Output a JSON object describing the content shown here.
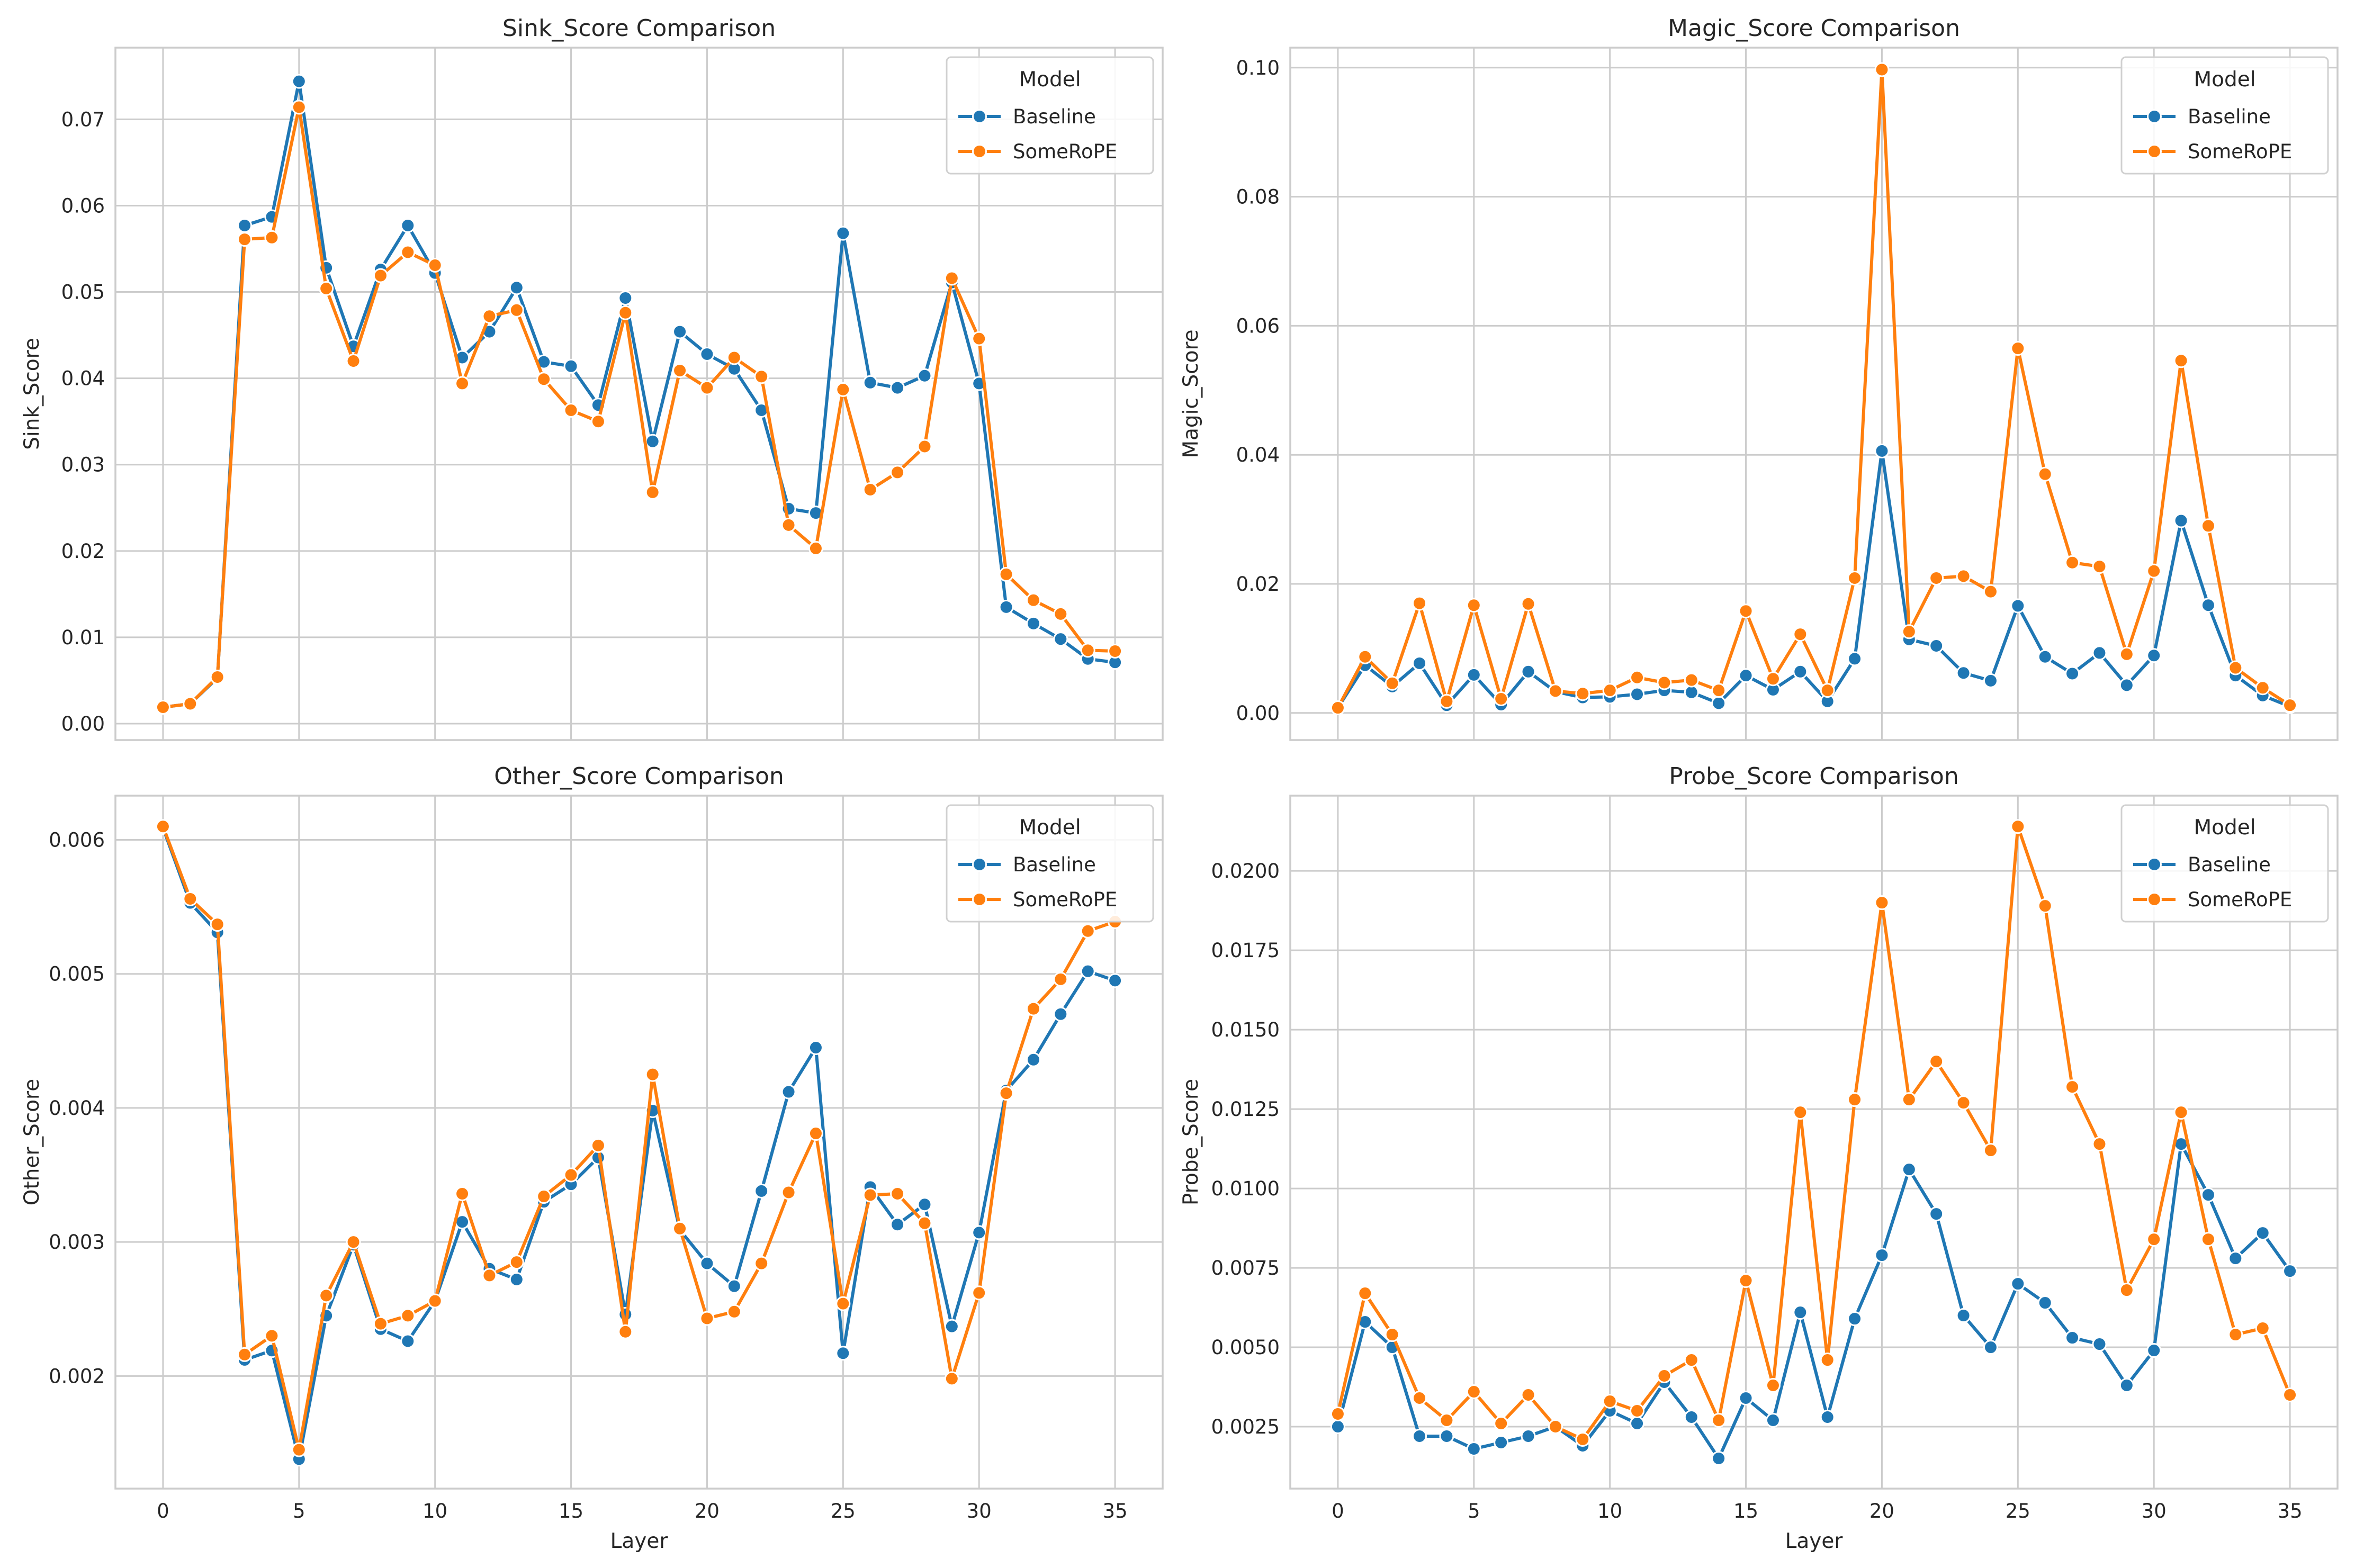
{
  "colors": {
    "baseline": "#1f77b4",
    "somerope": "#ff7f0e",
    "grid": "#cccccc",
    "text": "#262626"
  },
  "chart_data": [
    {
      "type": "line",
      "title": "Sink_Score Comparison",
      "xlabel": "",
      "ylabel": "Sink_Score",
      "xlim": [
        -1.75,
        36.75
      ],
      "ylim": [
        -0.0019,
        0.0783
      ],
      "xticks": [
        0,
        5,
        10,
        15,
        20,
        25,
        30,
        35
      ],
      "yticks": [
        0.0,
        0.01,
        0.02,
        0.03,
        0.04,
        0.05,
        0.06,
        0.07
      ],
      "ytick_labels": [
        "0.00",
        "0.01",
        "0.02",
        "0.03",
        "0.04",
        "0.05",
        "0.06",
        "0.07"
      ],
      "show_xtick_labels": false,
      "grid": true,
      "legend": {
        "title": "Model",
        "placement": "top-right"
      },
      "x": [
        0,
        1,
        2,
        3,
        4,
        5,
        6,
        7,
        8,
        9,
        10,
        11,
        12,
        13,
        14,
        15,
        16,
        17,
        18,
        19,
        20,
        21,
        22,
        23,
        24,
        25,
        26,
        27,
        28,
        29,
        30,
        31,
        32,
        33,
        34,
        35
      ],
      "series": [
        {
          "name": "Baseline",
          "values": [
            0.0019,
            0.0023,
            0.0053,
            0.0577,
            0.0587,
            0.0744,
            0.0528,
            0.0437,
            0.0526,
            0.0577,
            0.0522,
            0.0424,
            0.0454,
            0.0505,
            0.0419,
            0.0414,
            0.0369,
            0.0493,
            0.0327,
            0.0454,
            0.0428,
            0.0411,
            0.0363,
            0.0249,
            0.0244,
            0.0568,
            0.0395,
            0.0389,
            0.0403,
            0.0511,
            0.0394,
            0.0135,
            0.0116,
            0.0098,
            0.0075,
            0.0071
          ]
        },
        {
          "name": "SomeRoPE",
          "values": [
            0.0019,
            0.0023,
            0.0054,
            0.0561,
            0.0563,
            0.0714,
            0.0504,
            0.042,
            0.0519,
            0.0546,
            0.0531,
            0.0394,
            0.0472,
            0.0479,
            0.0399,
            0.0363,
            0.035,
            0.0476,
            0.0268,
            0.0409,
            0.0389,
            0.0424,
            0.0402,
            0.023,
            0.0203,
            0.0387,
            0.0271,
            0.0291,
            0.0321,
            0.0516,
            0.0446,
            0.0173,
            0.0143,
            0.0127,
            0.0085,
            0.0084
          ]
        }
      ]
    },
    {
      "type": "line",
      "title": "Magic_Score Comparison",
      "xlabel": "",
      "ylabel": "Magic_Score",
      "xlim": [
        -1.75,
        36.75
      ],
      "ylim": [
        -0.0042,
        0.1031
      ],
      "xticks": [
        0,
        5,
        10,
        15,
        20,
        25,
        30,
        35
      ],
      "yticks": [
        0.0,
        0.02,
        0.04,
        0.06,
        0.08,
        0.1
      ],
      "ytick_labels": [
        "0.00",
        "0.02",
        "0.04",
        "0.06",
        "0.08",
        "0.10"
      ],
      "show_xtick_labels": false,
      "grid": true,
      "legend": {
        "title": "Model",
        "placement": "top-right"
      },
      "x": [
        0,
        1,
        2,
        3,
        4,
        5,
        6,
        7,
        8,
        9,
        10,
        11,
        12,
        13,
        14,
        15,
        16,
        17,
        18,
        19,
        20,
        21,
        22,
        23,
        24,
        25,
        26,
        27,
        28,
        29,
        30,
        31,
        32,
        33,
        34,
        35
      ],
      "series": [
        {
          "name": "Baseline",
          "values": [
            0.0008,
            0.0074,
            0.0041,
            0.0077,
            0.0012,
            0.0059,
            0.0013,
            0.0064,
            0.0033,
            0.0024,
            0.0025,
            0.0029,
            0.0035,
            0.0032,
            0.0015,
            0.0058,
            0.0036,
            0.0064,
            0.0018,
            0.0084,
            0.0406,
            0.0114,
            0.0104,
            0.0062,
            0.005,
            0.0166,
            0.0087,
            0.0061,
            0.0093,
            0.0043,
            0.0089,
            0.0298,
            0.0167,
            0.0058,
            0.0027,
            0.001
          ]
        },
        {
          "name": "SomeRoPE",
          "values": [
            0.0008,
            0.0087,
            0.0046,
            0.017,
            0.0018,
            0.0167,
            0.0022,
            0.0169,
            0.0034,
            0.003,
            0.0035,
            0.0055,
            0.0047,
            0.0051,
            0.0035,
            0.0158,
            0.0053,
            0.0122,
            0.0035,
            0.0209,
            0.0997,
            0.0126,
            0.0209,
            0.0212,
            0.0188,
            0.0565,
            0.037,
            0.0233,
            0.0227,
            0.0091,
            0.022,
            0.0546,
            0.029,
            0.007,
            0.0039,
            0.0012
          ]
        }
      ]
    },
    {
      "type": "line",
      "title": "Other_Score Comparison",
      "xlabel": "Layer",
      "ylabel": "Other_Score",
      "xlim": [
        -1.75,
        36.75
      ],
      "ylim": [
        0.00116,
        0.00633
      ],
      "xticks": [
        0,
        5,
        10,
        15,
        20,
        25,
        30,
        35
      ],
      "yticks": [
        0.002,
        0.003,
        0.004,
        0.005,
        0.006
      ],
      "ytick_labels": [
        "0.002",
        "0.003",
        "0.004",
        "0.005",
        "0.006"
      ],
      "show_xtick_labels": true,
      "grid": true,
      "legend": {
        "title": "Model",
        "placement": "top-right"
      },
      "x": [
        0,
        1,
        2,
        3,
        4,
        5,
        6,
        7,
        8,
        9,
        10,
        11,
        12,
        13,
        14,
        15,
        16,
        17,
        18,
        19,
        20,
        21,
        22,
        23,
        24,
        25,
        26,
        27,
        28,
        29,
        30,
        31,
        32,
        33,
        34,
        35
      ],
      "series": [
        {
          "name": "Baseline",
          "values": [
            0.00609,
            0.00553,
            0.00531,
            0.00212,
            0.00219,
            0.00138,
            0.00245,
            0.00298,
            0.00235,
            0.00226,
            0.00256,
            0.00315,
            0.0028,
            0.00272,
            0.0033,
            0.00343,
            0.00363,
            0.00246,
            0.00398,
            0.00309,
            0.00284,
            0.00267,
            0.00338,
            0.00412,
            0.00445,
            0.00217,
            0.00341,
            0.00313,
            0.00328,
            0.00237,
            0.00307,
            0.00413,
            0.00436,
            0.0047,
            0.00502,
            0.00495
          ]
        },
        {
          "name": "SomeRoPE",
          "values": [
            0.0061,
            0.00556,
            0.00537,
            0.00216,
            0.0023,
            0.00145,
            0.0026,
            0.003,
            0.00239,
            0.00245,
            0.00256,
            0.00336,
            0.00275,
            0.00285,
            0.00334,
            0.0035,
            0.00372,
            0.00233,
            0.00425,
            0.0031,
            0.00243,
            0.00248,
            0.00284,
            0.00337,
            0.00381,
            0.00254,
            0.00335,
            0.00336,
            0.00314,
            0.00198,
            0.00262,
            0.00411,
            0.00474,
            0.00496,
            0.00532,
            0.00539
          ]
        }
      ]
    },
    {
      "type": "line",
      "title": "Probe_Score Comparison",
      "xlabel": "Layer",
      "ylabel": "Probe_Score",
      "xlim": [
        -1.75,
        36.75
      ],
      "ylim": [
        0.00055,
        0.02237
      ],
      "xticks": [
        0,
        5,
        10,
        15,
        20,
        25,
        30,
        35
      ],
      "yticks": [
        0.0025,
        0.005,
        0.0075,
        0.01,
        0.0125,
        0.015,
        0.0175,
        0.02
      ],
      "ytick_labels": [
        "0.0025",
        "0.0050",
        "0.0075",
        "0.0100",
        "0.0125",
        "0.0150",
        "0.0175",
        "0.0200"
      ],
      "show_xtick_labels": true,
      "grid": true,
      "legend": {
        "title": "Model",
        "placement": "top-right"
      },
      "x": [
        0,
        1,
        2,
        3,
        4,
        5,
        6,
        7,
        8,
        9,
        10,
        11,
        12,
        13,
        14,
        15,
        16,
        17,
        18,
        19,
        20,
        21,
        22,
        23,
        24,
        25,
        26,
        27,
        28,
        29,
        30,
        31,
        32,
        33,
        34,
        35
      ],
      "series": [
        {
          "name": "Baseline",
          "values": [
            0.0025,
            0.0058,
            0.005,
            0.0022,
            0.0022,
            0.0018,
            0.002,
            0.0022,
            0.0025,
            0.0019,
            0.003,
            0.0026,
            0.0039,
            0.0028,
            0.0015,
            0.0034,
            0.0027,
            0.0061,
            0.0028,
            0.0059,
            0.0079,
            0.0106,
            0.0092,
            0.006,
            0.005,
            0.007,
            0.0064,
            0.0053,
            0.0051,
            0.0038,
            0.0049,
            0.0114,
            0.0098,
            0.0078,
            0.0086,
            0.0074
          ]
        },
        {
          "name": "SomeRoPE",
          "values": [
            0.0029,
            0.0067,
            0.0054,
            0.0034,
            0.0027,
            0.0036,
            0.0026,
            0.0035,
            0.0025,
            0.0021,
            0.0033,
            0.003,
            0.0041,
            0.0046,
            0.0027,
            0.0071,
            0.0038,
            0.0124,
            0.0046,
            0.0128,
            0.019,
            0.0128,
            0.014,
            0.0127,
            0.0112,
            0.0214,
            0.0189,
            0.0132,
            0.0114,
            0.0068,
            0.0084,
            0.0124,
            0.0084,
            0.0054,
            0.0056,
            0.0035
          ]
        }
      ]
    }
  ]
}
